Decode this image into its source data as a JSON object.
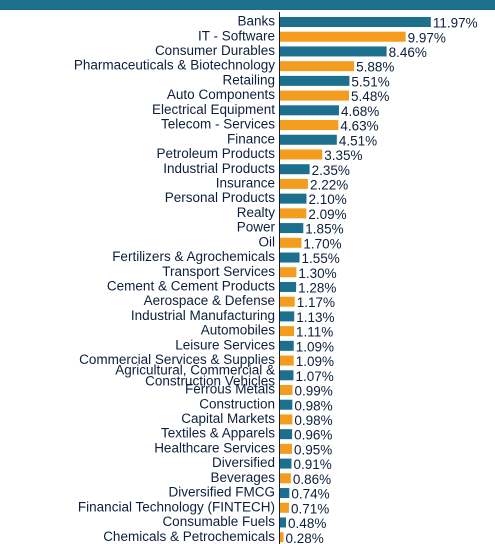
{
  "chart_data": {
    "type": "bar",
    "orientation": "horizontal",
    "categories": [
      "Banks",
      "IT - Software",
      "Consumer Durables",
      "Pharmaceuticals & Biotechnology",
      "Retailing",
      "Auto Components",
      "Electrical Equipment",
      "Telecom - Services",
      "Finance",
      "Petroleum Products",
      "Industrial Products",
      "Insurance",
      "Personal Products",
      "Realty",
      "Power",
      "Oil",
      "Fertilizers & Agrochemicals",
      "Transport Services",
      "Cement & Cement Products",
      "Aerospace & Defense",
      "Industrial Manufacturing",
      "Automobiles",
      "Leisure Services",
      "Commercial Services & Supplies",
      "Agricultural, Commercial & Construction Vehicles",
      "Ferrous Metals",
      "Construction",
      "Capital Markets",
      "Textiles & Apparels",
      "Healthcare Services",
      "Diversified",
      "Beverages",
      "Diversified FMCG",
      "Financial Technology (FINTECH)",
      "Consumable Fuels",
      "Chemicals & Petrochemicals"
    ],
    "values": [
      11.97,
      9.97,
      8.46,
      5.88,
      5.51,
      5.48,
      4.68,
      4.63,
      4.51,
      3.35,
      2.35,
      2.22,
      2.1,
      2.09,
      1.85,
      1.7,
      1.55,
      1.3,
      1.28,
      1.17,
      1.13,
      1.11,
      1.09,
      1.09,
      1.07,
      0.99,
      0.98,
      0.98,
      0.96,
      0.95,
      0.91,
      0.86,
      0.74,
      0.71,
      0.48,
      0.28
    ],
    "value_labels": [
      "11.97%",
      "9.97%",
      "8.46%",
      "5.88%",
      "5.51%",
      "5.48%",
      "4.68%",
      "4.63%",
      "4.51%",
      "3.35%",
      "2.35%",
      "2.22%",
      "2.10%",
      "2.09%",
      "1.85%",
      "1.70%",
      "1.55%",
      "1.30%",
      "1.28%",
      "1.17%",
      "1.13%",
      "1.11%",
      "1.09%",
      "1.09%",
      "1.07%",
      "0.99%",
      "0.98%",
      "0.98%",
      "0.96%",
      "0.95%",
      "0.91%",
      "0.86%",
      "0.74%",
      "0.71%",
      "0.48%",
      "0.28%"
    ],
    "colors": [
      "#1d6f8e",
      "#f39c1e"
    ]
  }
}
